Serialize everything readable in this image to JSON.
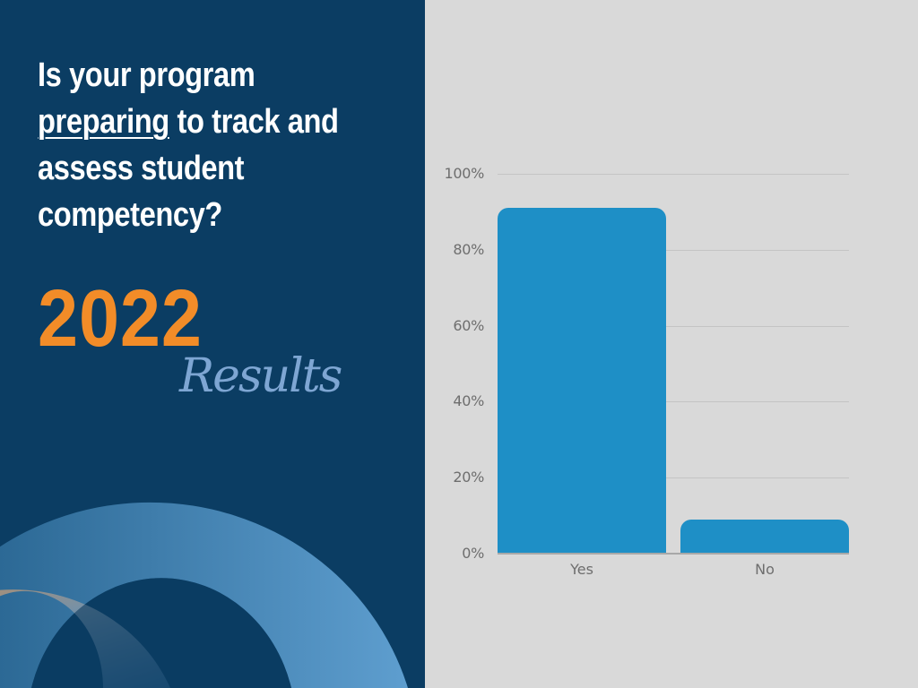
{
  "slide": {
    "question_parts": {
      "line1": "Is your program",
      "underlined": "preparing",
      "line2_rest": " to track and",
      "line3": "assess student",
      "line4": "competency?"
    },
    "year": "2022",
    "subtitle": "Results"
  },
  "colors": {
    "left_panel_bg": "#0b3d63",
    "chart_bg": "#d9d9d9",
    "bar": "#1e8fc6",
    "year": "#f28c28",
    "subtitle": "#7ea6d3",
    "question_text": "#ffffff"
  },
  "chart_data": {
    "type": "bar",
    "title": "Is your program preparing to track and assess student competency? 2022 Results",
    "categories": [
      "Yes",
      "No"
    ],
    "values": [
      91,
      9
    ],
    "value_unit": "%",
    "xlabel": "",
    "ylabel": "",
    "ylim": [
      0,
      100
    ],
    "y_ticks": [
      "0%",
      "20%",
      "40%",
      "60%",
      "80%",
      "100%"
    ],
    "grid": true,
    "legend": "none"
  }
}
